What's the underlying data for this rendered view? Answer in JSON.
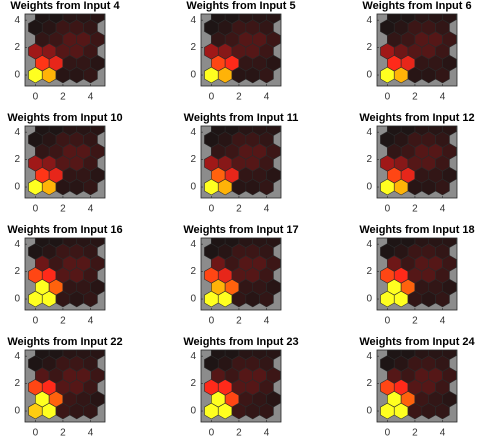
{
  "chart_data": [
    {
      "type": "hexplane",
      "title": "Weights from Input 4",
      "xlim": [
        -0.75,
        5.05
      ],
      "ylim": [
        -0.8,
        4.45
      ],
      "xticks": [
        0,
        2,
        4
      ],
      "yticks": [
        0,
        2,
        4
      ],
      "clim": [
        0,
        1
      ],
      "colormap": [
        "#141414",
        "#3c1616",
        "#a01818",
        "#ff2a1a",
        "#ff9a00",
        "#ffff20"
      ],
      "values": [
        [
          1.0,
          0.85,
          0.1,
          0.1,
          0.15
        ],
        [
          0.62,
          0.55,
          0.15,
          0.15,
          0.1
        ],
        [
          0.4,
          0.35,
          0.25,
          0.25,
          0.2
        ],
        [
          0.15,
          0.2,
          0.25,
          0.25,
          0.2
        ],
        [
          0.05,
          0.1,
          0.2,
          0.2,
          0.15
        ],
        [
          0.05,
          0.05,
          0.1,
          0.1,
          0.1
        ]
      ]
    },
    {
      "type": "hexplane",
      "title": "Weights from Input 5",
      "xlim": [
        -0.75,
        5.05
      ],
      "ylim": [
        -0.8,
        4.45
      ],
      "xticks": [
        0,
        2,
        4
      ],
      "yticks": [
        0,
        2,
        4
      ],
      "clim": [
        0,
        1
      ],
      "colormap": [
        "#141414",
        "#3c1616",
        "#a01818",
        "#ff2a1a",
        "#ff9a00",
        "#ffff20"
      ],
      "values": [
        [
          1.0,
          0.85,
          0.1,
          0.1,
          0.15
        ],
        [
          0.65,
          0.6,
          0.15,
          0.15,
          0.1
        ],
        [
          0.4,
          0.35,
          0.25,
          0.25,
          0.2
        ],
        [
          0.15,
          0.2,
          0.25,
          0.25,
          0.2
        ],
        [
          0.05,
          0.1,
          0.2,
          0.2,
          0.15
        ],
        [
          0.05,
          0.05,
          0.1,
          0.1,
          0.1
        ]
      ]
    },
    {
      "type": "hexplane",
      "title": "Weights from Input 6",
      "xlim": [
        -0.75,
        5.05
      ],
      "ylim": [
        -0.8,
        4.45
      ],
      "xticks": [
        0,
        2,
        4
      ],
      "yticks": [
        0,
        2,
        4
      ],
      "clim": [
        0,
        1
      ],
      "colormap": [
        "#141414",
        "#3c1616",
        "#a01818",
        "#ff2a1a",
        "#ff9a00",
        "#ffff20"
      ],
      "values": [
        [
          1.0,
          0.85,
          0.1,
          0.1,
          0.15
        ],
        [
          0.6,
          0.55,
          0.15,
          0.15,
          0.1
        ],
        [
          0.4,
          0.3,
          0.25,
          0.25,
          0.2
        ],
        [
          0.15,
          0.2,
          0.25,
          0.25,
          0.2
        ],
        [
          0.05,
          0.1,
          0.2,
          0.2,
          0.15
        ],
        [
          0.05,
          0.05,
          0.1,
          0.1,
          0.1
        ]
      ]
    },
    {
      "type": "hexplane",
      "title": "Weights from Input 10",
      "xlim": [
        -0.75,
        5.05
      ],
      "ylim": [
        -0.8,
        4.45
      ],
      "xticks": [
        0,
        2,
        4
      ],
      "yticks": [
        0,
        2,
        4
      ],
      "clim": [
        0,
        1
      ],
      "colormap": [
        "#141414",
        "#3c1616",
        "#a01818",
        "#ff2a1a",
        "#ff9a00",
        "#ffff20"
      ],
      "values": [
        [
          1.0,
          0.85,
          0.1,
          0.1,
          0.15
        ],
        [
          0.62,
          0.55,
          0.15,
          0.15,
          0.1
        ],
        [
          0.4,
          0.35,
          0.25,
          0.25,
          0.2
        ],
        [
          0.15,
          0.2,
          0.25,
          0.25,
          0.2
        ],
        [
          0.05,
          0.1,
          0.2,
          0.2,
          0.15
        ],
        [
          0.05,
          0.05,
          0.1,
          0.1,
          0.1
        ]
      ]
    },
    {
      "type": "hexplane",
      "title": "Weights from Input 11",
      "xlim": [
        -0.75,
        5.05
      ],
      "ylim": [
        -0.8,
        4.45
      ],
      "xticks": [
        0,
        2,
        4
      ],
      "yticks": [
        0,
        2,
        4
      ],
      "clim": [
        0,
        1
      ],
      "colormap": [
        "#141414",
        "#3c1616",
        "#a01818",
        "#ff2a1a",
        "#ff9a00",
        "#ffff20"
      ],
      "values": [
        [
          1.0,
          0.85,
          0.1,
          0.1,
          0.15
        ],
        [
          0.7,
          0.55,
          0.15,
          0.15,
          0.1
        ],
        [
          0.4,
          0.35,
          0.25,
          0.25,
          0.2
        ],
        [
          0.15,
          0.2,
          0.25,
          0.25,
          0.2
        ],
        [
          0.05,
          0.1,
          0.2,
          0.2,
          0.15
        ],
        [
          0.05,
          0.05,
          0.1,
          0.1,
          0.1
        ]
      ]
    },
    {
      "type": "hexplane",
      "title": "Weights from Input 12",
      "xlim": [
        -0.75,
        5.05
      ],
      "ylim": [
        -0.8,
        4.45
      ],
      "xticks": [
        0,
        2,
        4
      ],
      "yticks": [
        0,
        2,
        4
      ],
      "clim": [
        0,
        1
      ],
      "colormap": [
        "#141414",
        "#3c1616",
        "#a01818",
        "#ff2a1a",
        "#ff9a00",
        "#ffff20"
      ],
      "values": [
        [
          1.0,
          0.85,
          0.1,
          0.1,
          0.15
        ],
        [
          0.65,
          0.55,
          0.15,
          0.15,
          0.1
        ],
        [
          0.4,
          0.35,
          0.25,
          0.25,
          0.2
        ],
        [
          0.15,
          0.2,
          0.25,
          0.25,
          0.2
        ],
        [
          0.05,
          0.1,
          0.2,
          0.2,
          0.15
        ],
        [
          0.05,
          0.05,
          0.1,
          0.1,
          0.1
        ]
      ]
    },
    {
      "type": "hexplane",
      "title": "Weights from Input 16",
      "xlim": [
        -0.75,
        5.05
      ],
      "ylim": [
        -0.8,
        4.45
      ],
      "xticks": [
        0,
        2,
        4
      ],
      "yticks": [
        0,
        2,
        4
      ],
      "clim": [
        0,
        1
      ],
      "colormap": [
        "#141414",
        "#3c1616",
        "#a01818",
        "#ff2a1a",
        "#ff9a00",
        "#ffff20"
      ],
      "values": [
        [
          1.0,
          1.0,
          0.15,
          0.1,
          0.15
        ],
        [
          1.0,
          0.7,
          0.15,
          0.15,
          0.1
        ],
        [
          0.65,
          0.6,
          0.25,
          0.25,
          0.2
        ],
        [
          0.3,
          0.2,
          0.25,
          0.25,
          0.2
        ],
        [
          0.05,
          0.1,
          0.2,
          0.2,
          0.15
        ],
        [
          0.05,
          0.05,
          0.1,
          0.1,
          0.1
        ]
      ]
    },
    {
      "type": "hexplane",
      "title": "Weights from Input 17",
      "xlim": [
        -0.75,
        5.05
      ],
      "ylim": [
        -0.8,
        4.45
      ],
      "xticks": [
        0,
        2,
        4
      ],
      "yticks": [
        0,
        2,
        4
      ],
      "clim": [
        0,
        1
      ],
      "colormap": [
        "#141414",
        "#3c1616",
        "#a01818",
        "#ff2a1a",
        "#ff9a00",
        "#ffff20"
      ],
      "values": [
        [
          1.0,
          1.0,
          0.15,
          0.1,
          0.15
        ],
        [
          0.85,
          0.7,
          0.15,
          0.15,
          0.1
        ],
        [
          0.65,
          0.55,
          0.25,
          0.25,
          0.2
        ],
        [
          0.3,
          0.2,
          0.25,
          0.25,
          0.2
        ],
        [
          0.05,
          0.1,
          0.2,
          0.2,
          0.15
        ],
        [
          0.05,
          0.05,
          0.1,
          0.1,
          0.1
        ]
      ]
    },
    {
      "type": "hexplane",
      "title": "Weights from Input 18",
      "xlim": [
        -0.75,
        5.05
      ],
      "ylim": [
        -0.8,
        4.45
      ],
      "xticks": [
        0,
        2,
        4
      ],
      "yticks": [
        0,
        2,
        4
      ],
      "clim": [
        0,
        1
      ],
      "colormap": [
        "#141414",
        "#3c1616",
        "#a01818",
        "#ff2a1a",
        "#ff9a00",
        "#ffff20"
      ],
      "values": [
        [
          1.0,
          1.0,
          0.15,
          0.1,
          0.15
        ],
        [
          1.0,
          0.7,
          0.15,
          0.15,
          0.1
        ],
        [
          0.65,
          0.6,
          0.25,
          0.25,
          0.2
        ],
        [
          0.3,
          0.2,
          0.25,
          0.25,
          0.2
        ],
        [
          0.05,
          0.1,
          0.2,
          0.2,
          0.15
        ],
        [
          0.05,
          0.05,
          0.1,
          0.1,
          0.1
        ]
      ]
    },
    {
      "type": "hexplane",
      "title": "Weights from Input 22",
      "xlim": [
        -0.75,
        5.05
      ],
      "ylim": [
        -0.8,
        4.45
      ],
      "xticks": [
        0,
        2,
        4
      ],
      "yticks": [
        0,
        2,
        4
      ],
      "clim": [
        0,
        1
      ],
      "colormap": [
        "#141414",
        "#3c1616",
        "#a01818",
        "#ff2a1a",
        "#ff9a00",
        "#ffff20"
      ],
      "values": [
        [
          0.9,
          1.0,
          0.2,
          0.15,
          0.15
        ],
        [
          1.0,
          0.7,
          0.2,
          0.15,
          0.1
        ],
        [
          0.65,
          0.6,
          0.25,
          0.25,
          0.2
        ],
        [
          0.25,
          0.2,
          0.25,
          0.25,
          0.2
        ],
        [
          0.05,
          0.1,
          0.2,
          0.2,
          0.15
        ],
        [
          0.05,
          0.05,
          0.1,
          0.1,
          0.1
        ]
      ]
    },
    {
      "type": "hexplane",
      "title": "Weights from Input 23",
      "xlim": [
        -0.75,
        5.05
      ],
      "ylim": [
        -0.8,
        4.45
      ],
      "xticks": [
        0,
        2,
        4
      ],
      "yticks": [
        0,
        2,
        4
      ],
      "clim": [
        0,
        1
      ],
      "colormap": [
        "#141414",
        "#3c1616",
        "#a01818",
        "#ff2a1a",
        "#ff9a00",
        "#ffff20"
      ],
      "values": [
        [
          1.0,
          1.0,
          0.2,
          0.15,
          0.15
        ],
        [
          1.0,
          0.65,
          0.2,
          0.15,
          0.1
        ],
        [
          0.6,
          0.6,
          0.25,
          0.25,
          0.2
        ],
        [
          0.25,
          0.2,
          0.25,
          0.25,
          0.2
        ],
        [
          0.05,
          0.1,
          0.2,
          0.2,
          0.15
        ],
        [
          0.05,
          0.05,
          0.1,
          0.1,
          0.1
        ]
      ]
    },
    {
      "type": "hexplane",
      "title": "Weights from Input 24",
      "xlim": [
        -0.75,
        5.05
      ],
      "ylim": [
        -0.8,
        4.45
      ],
      "xticks": [
        0,
        2,
        4
      ],
      "yticks": [
        0,
        2,
        4
      ],
      "clim": [
        0,
        1
      ],
      "colormap": [
        "#141414",
        "#3c1616",
        "#a01818",
        "#ff2a1a",
        "#ff9a00",
        "#ffff20"
      ],
      "values": [
        [
          1.0,
          1.0,
          0.2,
          0.15,
          0.15
        ],
        [
          1.0,
          0.7,
          0.2,
          0.15,
          0.1
        ],
        [
          0.65,
          0.6,
          0.25,
          0.25,
          0.2
        ],
        [
          0.25,
          0.2,
          0.25,
          0.25,
          0.2
        ],
        [
          0.05,
          0.1,
          0.2,
          0.2,
          0.15
        ],
        [
          0.05,
          0.05,
          0.1,
          0.1,
          0.1
        ]
      ]
    }
  ]
}
